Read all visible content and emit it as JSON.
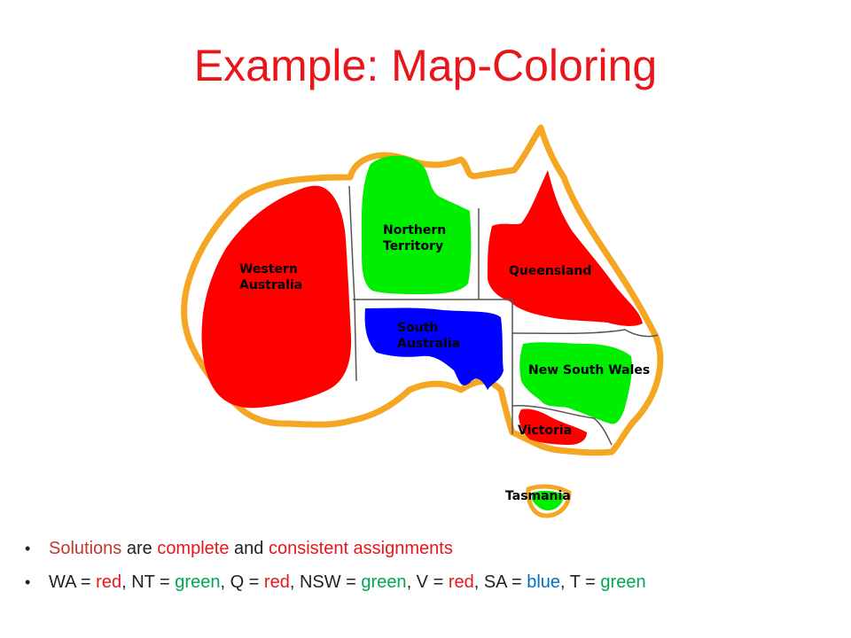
{
  "title": "Example: Map-Coloring",
  "colors": {
    "title": "#e8161b",
    "red": "#ff0000",
    "green": "#00ee00",
    "blue": "#0000ff",
    "border": "#f5a623",
    "text": "#222222",
    "red_text": "#c0392b",
    "green_text": "#00a651",
    "blue_text": "#0070c0"
  },
  "map": {
    "regions": {
      "western_australia": {
        "label_line1": "Western",
        "label_line2": "Australia",
        "color": "red"
      },
      "northern_territory": {
        "label_line1": "Northern",
        "label_line2": "Territory",
        "color": "green"
      },
      "south_australia": {
        "label_line1": "South",
        "label_line2": "Australia",
        "color": "blue"
      },
      "queensland": {
        "label": "Queensland",
        "color": "red"
      },
      "new_south_wales": {
        "label": "New South Wales",
        "color": "green"
      },
      "victoria": {
        "label": "Victoria",
        "color": "red"
      },
      "tasmania": {
        "label": "Tasmania",
        "color": "green"
      }
    }
  },
  "bullets": {
    "b1": {
      "word_solutions": "Solutions",
      "word_are": " are ",
      "word_complete": "complete",
      "word_and": " and ",
      "word_consistent": "consistent assignments"
    },
    "b2": {
      "wa_key": "WA = ",
      "wa_val": "red",
      "nt_key": ", NT = ",
      "nt_val": "green",
      "q_key": ", Q = ",
      "q_val": "red",
      "nsw_key": ", NSW = ",
      "nsw_val": "green",
      "v_key": ", V = ",
      "v_val": "red",
      "sa_key": ", SA = ",
      "sa_val": "blue",
      "t_key": ", T = ",
      "t_val": "green"
    }
  }
}
